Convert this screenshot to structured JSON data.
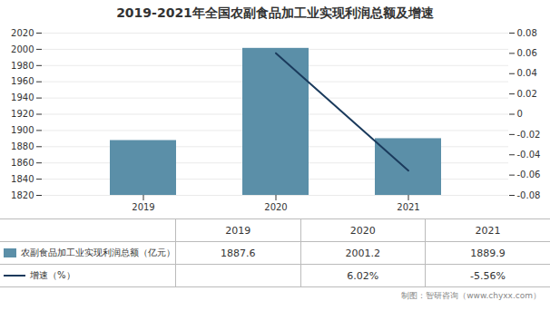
{
  "chart_data": {
    "type": "bar",
    "title": "2019-2021年全国农副食品加工业实现利润总额及增速",
    "categories": [
      "2019",
      "2020",
      "2021"
    ],
    "series": [
      {
        "name": "农副食品加工业实现利润总额（亿元）",
        "type": "bar",
        "color": "#5b8fa8",
        "values": [
          1887.6,
          2001.2,
          1889.9
        ],
        "data_labels": true
      },
      {
        "name": "增速（%）",
        "type": "line",
        "color": "#1a3a5c",
        "axis": "y2",
        "values": [
          null,
          0.0602,
          -0.0556
        ],
        "value_labels": [
          null,
          "6.02%",
          "-5.56%"
        ],
        "data_labels": true
      }
    ],
    "ylim": [
      1820,
      2020
    ],
    "yticks": [
      1820,
      1840,
      1860,
      1880,
      1900,
      1920,
      1940,
      1960,
      1980,
      2000,
      2020
    ],
    "y2lim": [
      -0.08,
      0.08
    ],
    "y2ticks": [
      -0.08,
      -0.06,
      -0.04,
      -0.02,
      0,
      0.02,
      0.04,
      0.06,
      0.08
    ],
    "grid": true,
    "annotations": [
      "制图：智研咨询（www.chyxx.com）"
    ]
  }
}
